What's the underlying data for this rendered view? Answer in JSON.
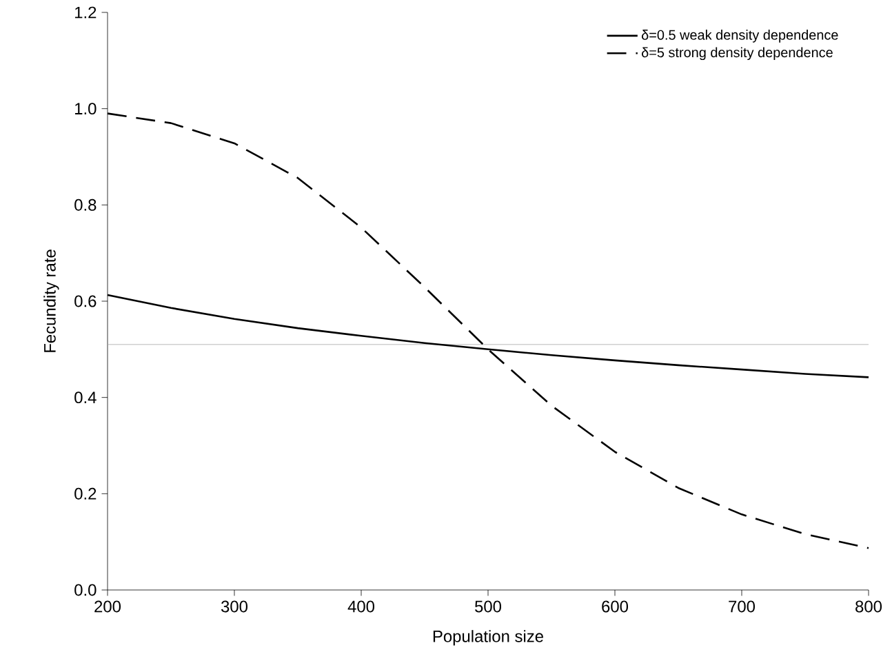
{
  "chart_data": {
    "type": "line",
    "xlabel": "Population size",
    "ylabel": "Fecundity rate",
    "x": [
      200,
      250,
      300,
      350,
      400,
      450,
      500,
      550,
      600,
      650,
      700,
      750,
      800
    ],
    "series": [
      {
        "name": "δ=0.5 weak density dependence",
        "color": "#000000",
        "line_style": "solid",
        "values": [
          0.613,
          0.586,
          0.563,
          0.544,
          0.528,
          0.513,
          0.5,
          0.488,
          0.477,
          0.467,
          0.458,
          0.449,
          0.442
        ]
      },
      {
        "name": "δ=5 strong density dependence",
        "color": "#000000",
        "line_style": "dashed",
        "values": [
          0.99,
          0.97,
          0.928,
          0.856,
          0.753,
          0.629,
          0.5,
          0.383,
          0.287,
          0.212,
          0.157,
          0.116,
          0.087
        ]
      }
    ],
    "ref_lines": [
      {
        "axis": "y",
        "value": 0.51,
        "color": "#a6a6a6"
      }
    ],
    "xlim": [
      200,
      800
    ],
    "ylim": [
      0,
      1.2
    ],
    "xticks": [
      200,
      300,
      400,
      500,
      600,
      700,
      800
    ],
    "yticks": [
      {
        "value": 0,
        "label": "0.0"
      },
      {
        "value": 0.2,
        "label": "0.2"
      },
      {
        "value": 0.4,
        "label": "0.4"
      },
      {
        "value": 0.6,
        "label": "0.6"
      },
      {
        "value": 0.8,
        "label": "0.8"
      },
      {
        "value": 1.0,
        "label": "1.0"
      },
      {
        "value": 1.2,
        "label": "1.2"
      }
    ],
    "legend": "top right",
    "grid": false,
    "marker": "none"
  }
}
